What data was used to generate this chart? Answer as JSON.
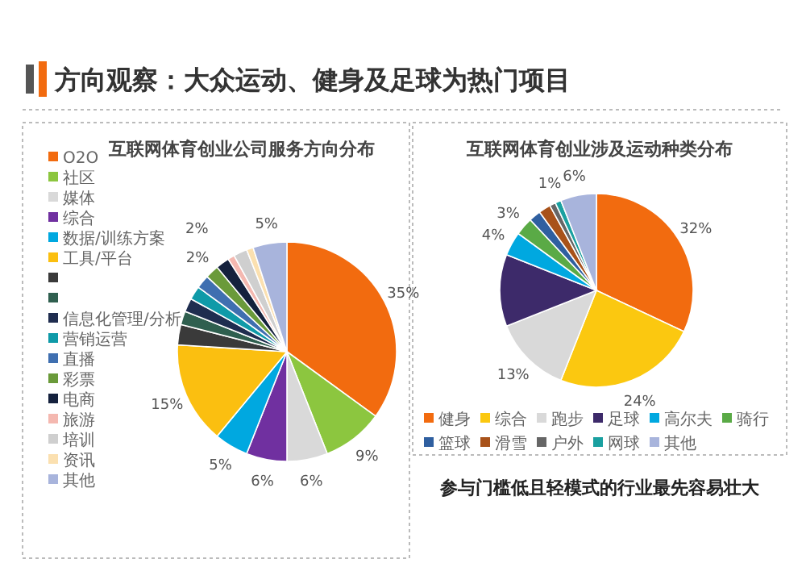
{
  "chart_data": [
    {
      "type": "pie",
      "title": "方向观察：大众运动、健身及足球为热门项目",
      "subtitle": "互联网体育创业公司服务方向分布",
      "legend": "left",
      "categories": [
        "O2O",
        "社区",
        "媒体",
        "综合",
        "数据/训练方案",
        "工具/平台",
        null,
        null,
        "信息化管理/分析",
        "营销运营",
        "直播",
        "彩票",
        "电商",
        "旅游",
        "培训",
        "资讯",
        "其他"
      ],
      "values": [
        35,
        9,
        6,
        6,
        5,
        15,
        3,
        2,
        2,
        2,
        2,
        2,
        2,
        1,
        2,
        1,
        5
      ],
      "value_labels": [
        "35%",
        "9%",
        "6%",
        "6%",
        "5%",
        "15%",
        null,
        null,
        null,
        null,
        null,
        "2%",
        "2%",
        null,
        null,
        null,
        "5%"
      ],
      "colors": [
        "#f26b0f",
        "#8cc63f",
        "#d9d9d9",
        "#7030a0",
        "#00a8e0",
        "#fbbf10",
        "#3a3a3a",
        "#2f5f4f",
        "#1f2d4f",
        "#0f9aa8",
        "#3f6fb0",
        "#6a9a3a",
        "#14213d",
        "#f4b8b0",
        "#cfcfcf",
        "#fbe0b0",
        "#a8b4dc"
      ]
    },
    {
      "type": "pie",
      "title": "互联网体育创业涉及运动种类分布",
      "legend": "bottom",
      "categories": [
        "健身",
        "综合",
        "跑步",
        "足球",
        "高尔夫",
        "骑行",
        "篮球",
        "滑雪",
        "户外",
        "网球",
        "其他"
      ],
      "values": [
        32,
        24,
        13,
        12,
        4,
        3,
        2,
        2,
        1,
        1,
        6
      ],
      "value_labels": [
        "32%",
        "24%",
        "13%",
        null,
        "4%",
        "3%",
        null,
        null,
        null,
        "1%",
        "6%"
      ],
      "colors": [
        "#f26b0f",
        "#fbc810",
        "#d9d9d9",
        "#3d2a6a",
        "#00a8e0",
        "#5aaa46",
        "#2f5fa0",
        "#a8521a",
        "#666666",
        "#1aa0a0",
        "#a8b4dc"
      ],
      "annotations": [
        "参与门槛低且轻模式的行业最先容易壮大"
      ]
    }
  ]
}
